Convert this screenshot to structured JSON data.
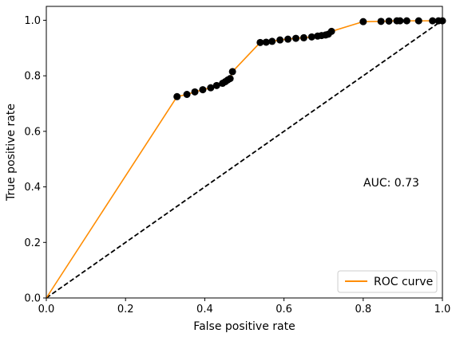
{
  "chart_data": {
    "type": "line",
    "xlabel": "False positive rate",
    "ylabel": "True positive rate",
    "xlim": [
      0.0,
      1.0
    ],
    "ylim": [
      0.0,
      1.05
    ],
    "xticks": [
      "0.0",
      "0.2",
      "0.4",
      "0.6",
      "0.8",
      "1.0"
    ],
    "yticks": [
      "0.0",
      "0.2",
      "0.4",
      "0.6",
      "0.8",
      "1.0"
    ],
    "grid": false,
    "legend_position": "bottom-right",
    "annotation": "AUC: 0.73",
    "series": [
      {
        "name": "ROC curve",
        "color": "#ff8c00",
        "style": "solid",
        "x": [
          0.0,
          0.33,
          0.355,
          0.375,
          0.395,
          0.415,
          0.43,
          0.445,
          0.452,
          0.458,
          0.464,
          0.47,
          0.54,
          0.555,
          0.57,
          0.59,
          0.61,
          0.63,
          0.65,
          0.67,
          0.685,
          0.695,
          0.705,
          0.712,
          0.72,
          0.8,
          0.845,
          0.865,
          0.885,
          0.893,
          0.91,
          0.94,
          0.975,
          0.99,
          1.0
        ],
        "y": [
          0.0,
          0.725,
          0.733,
          0.742,
          0.75,
          0.757,
          0.765,
          0.773,
          0.779,
          0.785,
          0.79,
          0.815,
          0.92,
          0.921,
          0.924,
          0.929,
          0.932,
          0.935,
          0.937,
          0.94,
          0.943,
          0.945,
          0.947,
          0.95,
          0.96,
          0.995,
          0.996,
          0.997,
          0.998,
          0.998,
          0.998,
          0.998,
          0.998,
          0.998,
          0.998
        ]
      },
      {
        "color": "#000000",
        "style": "dashed",
        "x": [
          0.0,
          1.0
        ],
        "y": [
          0.0,
          1.0
        ]
      }
    ],
    "markers": {
      "color": "#000000",
      "x": [
        0.33,
        0.355,
        0.375,
        0.395,
        0.415,
        0.43,
        0.445,
        0.452,
        0.458,
        0.464,
        0.47,
        0.54,
        0.555,
        0.57,
        0.59,
        0.61,
        0.63,
        0.65,
        0.67,
        0.685,
        0.695,
        0.705,
        0.712,
        0.72,
        0.8,
        0.845,
        0.865,
        0.885,
        0.893,
        0.91,
        0.94,
        0.975,
        0.99,
        1.0
      ],
      "y": [
        0.725,
        0.733,
        0.742,
        0.75,
        0.757,
        0.765,
        0.773,
        0.779,
        0.785,
        0.79,
        0.815,
        0.92,
        0.921,
        0.924,
        0.929,
        0.932,
        0.935,
        0.937,
        0.94,
        0.943,
        0.945,
        0.947,
        0.95,
        0.96,
        0.995,
        0.996,
        0.997,
        0.998,
        0.998,
        0.998,
        0.998,
        0.998,
        0.998,
        0.998
      ]
    }
  }
}
